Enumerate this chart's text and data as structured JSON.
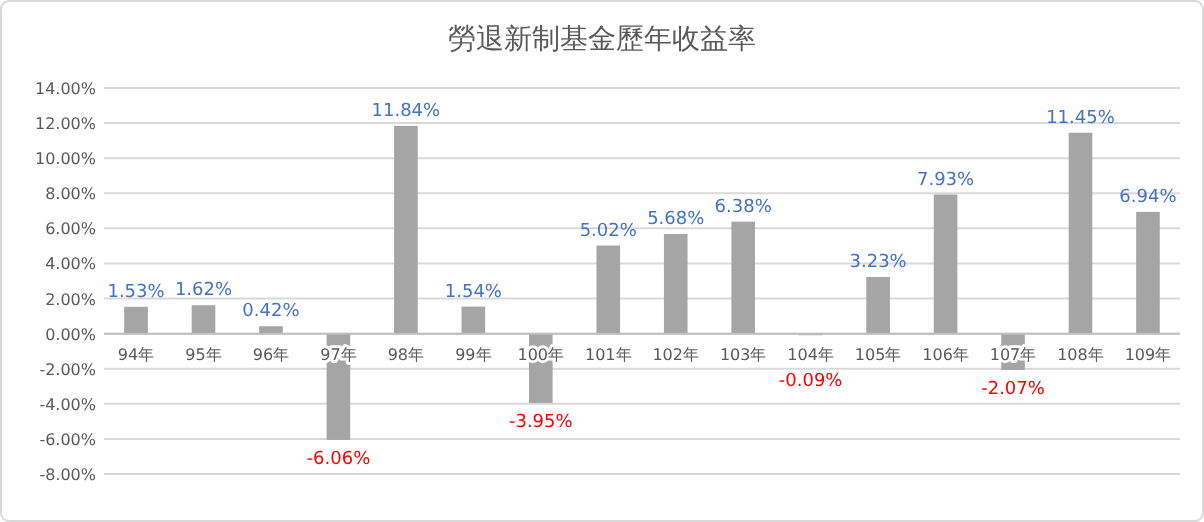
{
  "chart_data": {
    "type": "bar",
    "title": "勞退新制基金歷年收益率",
    "categories": [
      "94年",
      "95年",
      "96年",
      "97年",
      "98年",
      "99年",
      "100年",
      "101年",
      "102年",
      "103年",
      "104年",
      "105年",
      "106年",
      "107年",
      "108年",
      "109年"
    ],
    "values": [
      1.53,
      1.62,
      0.42,
      -6.06,
      11.84,
      1.54,
      -3.95,
      5.02,
      5.68,
      6.38,
      -0.09,
      3.23,
      7.93,
      -2.07,
      11.45,
      6.94
    ],
    "value_labels": [
      "1.53%",
      "1.62%",
      "0.42%",
      "-6.06%",
      "11.84%",
      "1.54%",
      "-3.95%",
      "5.02%",
      "5.68%",
      "6.38%",
      "-0.09%",
      "3.23%",
      "7.93%",
      "-2.07%",
      "11.45%",
      "6.94%"
    ],
    "color": "#a5a5a5",
    "ylim": [
      -8,
      14
    ],
    "yticks": [
      {
        "value": -8,
        "label": "-8.00%"
      },
      {
        "value": -6,
        "label": "-6.00%"
      },
      {
        "value": -4,
        "label": "-4.00%"
      },
      {
        "value": -2,
        "label": "-2.00%"
      },
      {
        "value": 0,
        "label": "0.00%"
      },
      {
        "value": 2,
        "label": "2.00%"
      },
      {
        "value": 4,
        "label": "4.00%"
      },
      {
        "value": 6,
        "label": "6.00%"
      },
      {
        "value": 8,
        "label": "8.00%"
      },
      {
        "value": 10,
        "label": "10.00%"
      },
      {
        "value": 12,
        "label": "12.00%"
      },
      {
        "value": 14,
        "label": "14.00%"
      }
    ],
    "grid": true
  }
}
